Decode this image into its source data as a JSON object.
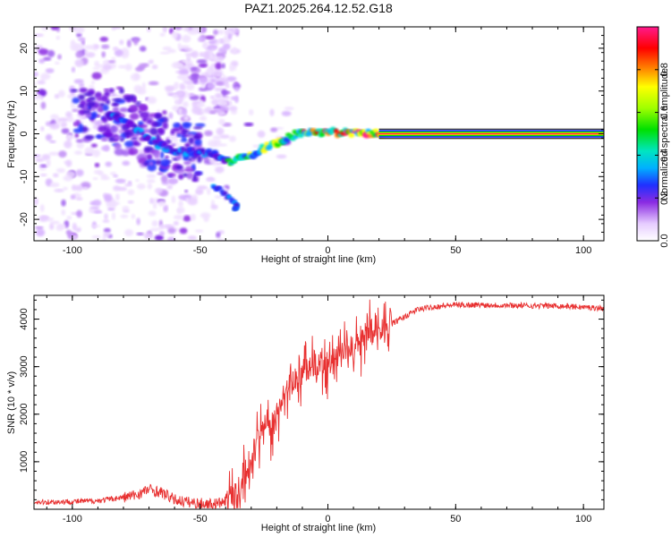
{
  "title": "PAZ1.2025.264.12.52.G18",
  "chart_data": [
    {
      "type": "heatmap",
      "xlabel": "Height of straight line (km)",
      "ylabel": "Frequency (Hz)",
      "xlim": [
        -115,
        108
      ],
      "ylim": [
        -25,
        25
      ],
      "x_ticks": [
        -100,
        -50,
        0,
        50,
        100
      ],
      "y_ticks": [
        -20,
        -10,
        0,
        10,
        20
      ],
      "colorbar": {
        "label": "Normalized spectral amplitude",
        "range": [
          0,
          1
        ],
        "ticks": [
          0.0,
          0.2,
          0.4,
          0.6,
          0.8
        ]
      },
      "ridge": {
        "description_points": [
          {
            "x": -82,
            "y": 4
          },
          {
            "x": -75,
            "y": 1
          },
          {
            "x": -68,
            "y": -2
          },
          {
            "x": -60,
            "y": -4
          },
          {
            "x": -45,
            "y": -4.5
          },
          {
            "x": -38,
            "y": -6.5
          },
          {
            "x": -30,
            "y": -5
          },
          {
            "x": -24,
            "y": -3
          },
          {
            "x": -18,
            "y": -1.5
          },
          {
            "x": -12,
            "y": 0
          },
          {
            "x": -5,
            "y": 0.5
          },
          {
            "x": 5,
            "y": 0.3
          },
          {
            "x": 20,
            "y": 0.1
          },
          {
            "x": 108,
            "y": 0
          }
        ],
        "secondary_branch": [
          {
            "x": -45,
            "y": -12
          },
          {
            "x": -40,
            "y": -14
          },
          {
            "x": -36,
            "y": -17
          }
        ]
      }
    },
    {
      "type": "line",
      "xlabel": "Height of straight line (km)",
      "ylabel": "SNR (10 * v/v)",
      "xlim": [
        -115,
        108
      ],
      "ylim": [
        0,
        4500
      ],
      "x_ticks": [
        -100,
        -50,
        0,
        50,
        100
      ],
      "y_ticks": [
        1000,
        2000,
        3000,
        4000
      ],
      "color": "#e83030",
      "series": [
        {
          "x": [
            -115,
            -100,
            -90,
            -80,
            -75,
            -70,
            -65,
            -60,
            -55,
            -50,
            -45,
            -40,
            -35,
            -32,
            -30,
            -28,
            -25,
            -22,
            -20,
            -18,
            -15,
            -12,
            -10,
            -5,
            0,
            5,
            10,
            15,
            20,
            25,
            30,
            35,
            40,
            45,
            50,
            60,
            70,
            80,
            90,
            100,
            108
          ],
          "values": [
            150,
            160,
            180,
            250,
            300,
            420,
            350,
            200,
            150,
            120,
            110,
            150,
            350,
            700,
            900,
            1400,
            1700,
            1800,
            2000,
            2400,
            2600,
            2700,
            2900,
            3000,
            3100,
            3200,
            3450,
            3700,
            3800,
            3900,
            4050,
            4200,
            4250,
            4280,
            4300,
            4300,
            4290,
            4280,
            4280,
            4250,
            4230
          ]
        }
      ]
    }
  ]
}
